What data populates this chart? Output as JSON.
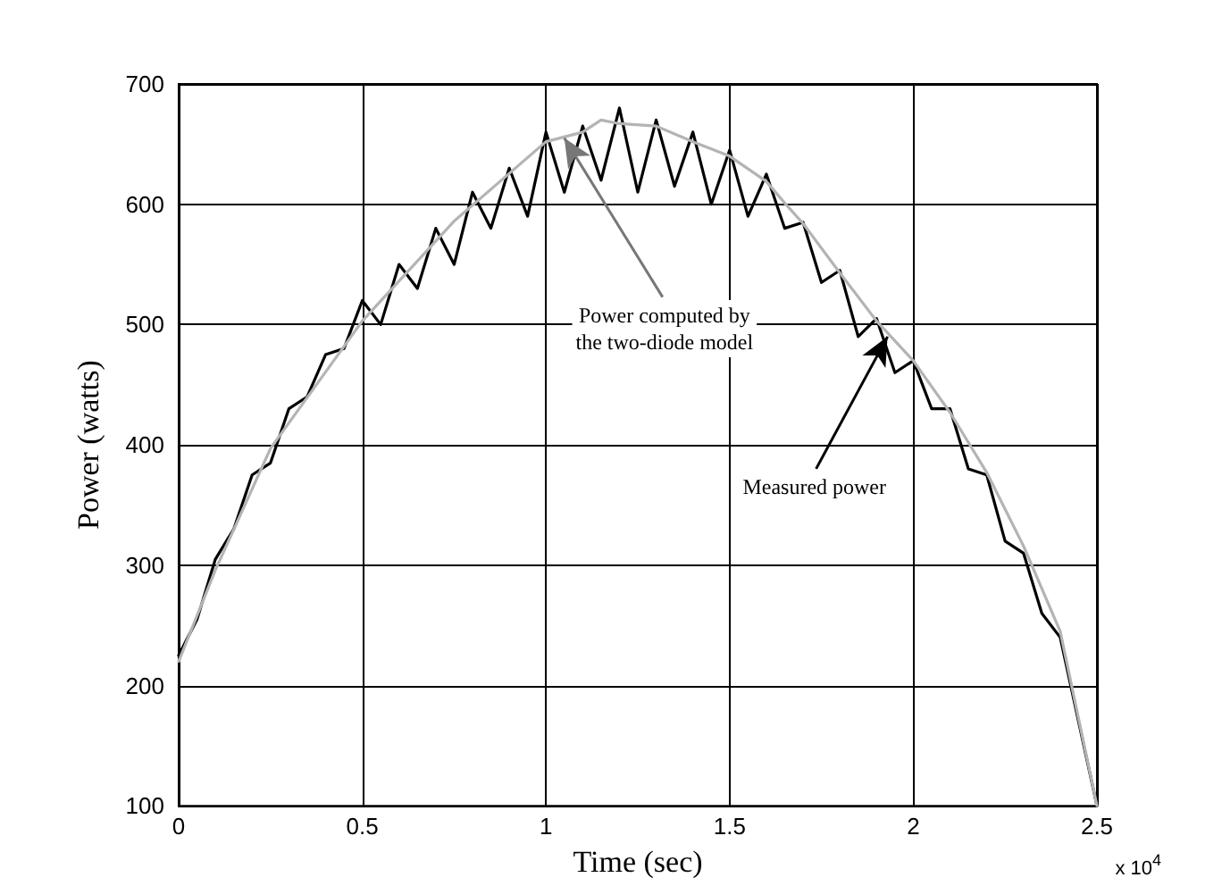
{
  "chart_data": {
    "type": "line",
    "xlabel": "Time (sec)",
    "ylabel": "Power (watts)",
    "xlim": [
      0,
      2.5
    ],
    "xticks": [
      0,
      0.5,
      1,
      1.5,
      2,
      2.5
    ],
    "ylim": [
      100,
      700
    ],
    "yticks": [
      100,
      200,
      300,
      400,
      500,
      600,
      700
    ],
    "grid": true,
    "legend": false,
    "marker": "none",
    "line_style": "solid",
    "annotations": [
      {
        "text": "Power computed by\nthe two-diode model",
        "x": 1.05,
        "y": 655
      },
      {
        "text": "Measured power",
        "x": 1.93,
        "y": 490
      },
      "x 10$^{4}$"
    ],
    "series": [
      {
        "color": "#000000",
        "x": [
          0,
          0.05,
          0.1,
          0.15,
          0.2,
          0.25,
          0.3,
          0.35,
          0.4,
          0.45,
          0.5,
          0.55,
          0.6,
          0.65,
          0.7,
          0.75,
          0.8,
          0.85,
          0.9,
          0.95,
          1.0,
          1.05,
          1.1,
          1.15,
          1.2,
          1.25,
          1.3,
          1.35,
          1.4,
          1.45,
          1.5,
          1.55,
          1.6,
          1.65,
          1.7,
          1.75,
          1.8,
          1.85,
          1.9,
          1.95,
          2.0,
          2.05,
          2.1,
          2.15,
          2.2,
          2.25,
          2.3,
          2.35,
          2.4,
          2.45,
          2.5
        ],
        "values": [
          225,
          255,
          305,
          330,
          375,
          385,
          430,
          440,
          475,
          480,
          520,
          500,
          550,
          530,
          580,
          550,
          610,
          580,
          630,
          590,
          660,
          610,
          665,
          620,
          680,
          610,
          670,
          615,
          660,
          600,
          645,
          590,
          625,
          580,
          585,
          535,
          545,
          490,
          505,
          460,
          470,
          430,
          430,
          380,
          375,
          320,
          310,
          260,
          240,
          170,
          100
        ]
      },
      {
        "color": "#b4b4b4",
        "x": [
          0,
          0.1,
          0.25,
          0.5,
          0.75,
          1.0,
          1.1,
          1.15,
          1.2,
          1.3,
          1.4,
          1.5,
          1.6,
          1.65,
          1.7,
          1.8,
          1.9,
          2.0,
          2.1,
          2.2,
          2.3,
          2.4,
          2.5
        ],
        "values": [
          220,
          296,
          397,
          503,
          586,
          652,
          660,
          670,
          667,
          665,
          652,
          640,
          619,
          601,
          584,
          543,
          503,
          470,
          427,
          377,
          316,
          245,
          100
        ]
      }
    ]
  }
}
